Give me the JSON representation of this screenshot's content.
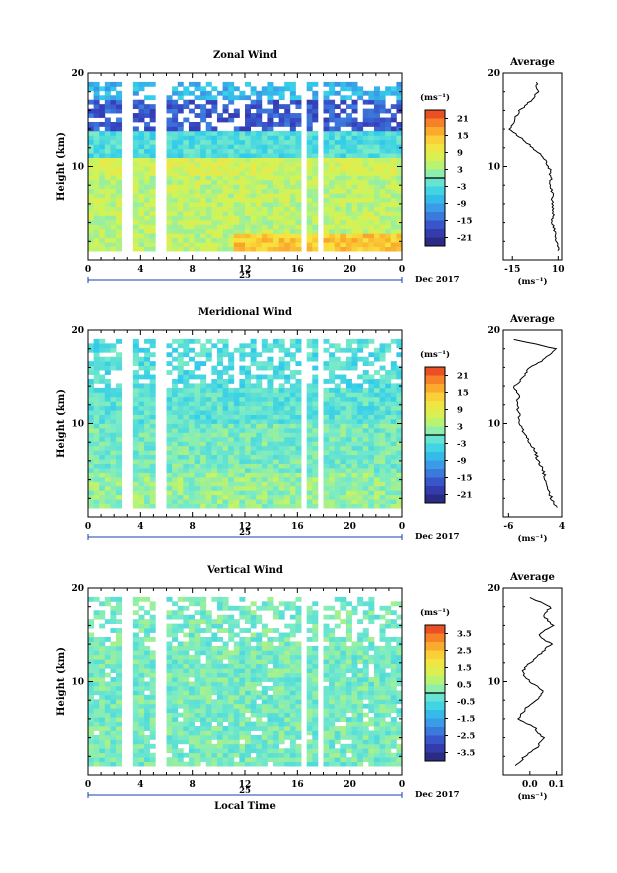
{
  "chart_data": [
    {
      "type": "heatmap",
      "title": "Zonal Wind",
      "ylabel": "Height (km)",
      "xlabel": "",
      "xlim": [
        0,
        24
      ],
      "ylim": [
        0,
        20
      ],
      "x_ticks": [
        "0",
        "4",
        "8",
        "12",
        "16",
        "20",
        "0"
      ],
      "y_ticks": [
        "10",
        "20"
      ],
      "day_label": "25",
      "date_label": "Dec 2017",
      "colorbar": {
        "unit": "(ms⁻¹)",
        "min": -24,
        "max": 24,
        "ticks": [
          "21",
          "15",
          "9",
          "3",
          "-3",
          "-9",
          "-15",
          "-21"
        ]
      },
      "data_gaps_hours": [
        [
          2.4,
          3.5
        ],
        [
          5.3,
          5.9
        ],
        [
          16.1,
          16.5
        ],
        [
          17.5,
          17.8
        ]
      ],
      "layers": [
        {
          "z_range": [
            1,
            3
          ],
          "value_early": 5,
          "value_late": 14
        },
        {
          "z_range": [
            3,
            9
          ],
          "value": 5
        },
        {
          "z_range": [
            9,
            11
          ],
          "value": 7
        },
        {
          "z_range": [
            11,
            14
          ],
          "value": -3
        },
        {
          "z_range": [
            14,
            17
          ],
          "value": -16
        },
        {
          "z_range": [
            17,
            19
          ],
          "value": -8
        }
      ],
      "profile": {
        "title": "Average",
        "xlabel": "(ms⁻¹)",
        "xlim": [
          -20,
          12
        ],
        "x_ticks": [
          "-15",
          "10"
        ],
        "y_ticks": [
          "10",
          "20"
        ],
        "height_km": [
          1,
          2,
          3,
          4,
          5,
          6,
          7,
          8,
          9,
          10,
          11,
          12,
          13,
          14,
          15,
          16,
          17,
          18,
          19
        ],
        "values": [
          10,
          9,
          8,
          7,
          7,
          7,
          7,
          6,
          6,
          5,
          2,
          -4,
          -10,
          -16,
          -14,
          -11,
          -5,
          -1,
          -2
        ]
      }
    },
    {
      "type": "heatmap",
      "title": "Meridional Wind",
      "ylabel": "Height (km)",
      "xlabel": "",
      "xlim": [
        0,
        24
      ],
      "ylim": [
        0,
        20
      ],
      "x_ticks": [
        "0",
        "4",
        "8",
        "12",
        "16",
        "20",
        "0"
      ],
      "y_ticks": [
        "10",
        "20"
      ],
      "day_label": "25",
      "date_label": "Dec 2017",
      "colorbar": {
        "unit": "(ms⁻¹)",
        "min": -24,
        "max": 24,
        "ticks": [
          "21",
          "15",
          "9",
          "3",
          "-3",
          "-9",
          "-15",
          "-21"
        ]
      },
      "data_gaps_hours": [
        [
          2.4,
          3.5
        ],
        [
          5.3,
          5.9
        ],
        [
          16.1,
          16.5
        ],
        [
          17.5,
          17.8
        ]
      ],
      "layers": [
        {
          "z_range": [
            1,
            5
          ],
          "value": 2
        },
        {
          "z_range": [
            5,
            10
          ],
          "value": 0
        },
        {
          "z_range": [
            10,
            14
          ],
          "value": -2
        },
        {
          "z_range": [
            14,
            19
          ],
          "value": -3
        }
      ],
      "profile": {
        "title": "Average",
        "xlabel": "(ms⁻¹)",
        "xlim": [
          -7,
          4
        ],
        "x_ticks": [
          "-6",
          "4"
        ],
        "y_ticks": [
          "10",
          "20"
        ],
        "height_km": [
          1,
          2,
          3,
          4,
          5,
          6,
          7,
          8,
          9,
          10,
          11,
          12,
          13,
          14,
          15,
          16,
          17,
          18,
          19
        ],
        "values": [
          3,
          2,
          1.5,
          1,
          0.5,
          -0.5,
          -1,
          -2,
          -3,
          -4,
          -4,
          -4.5,
          -4,
          -5,
          -3,
          -2,
          1,
          3,
          -5
        ]
      }
    },
    {
      "type": "heatmap",
      "title": "Vertical Wind",
      "ylabel": "Height (km)",
      "xlabel": "Local Time",
      "xlim": [
        0,
        24
      ],
      "ylim": [
        0,
        20
      ],
      "x_ticks": [
        "0",
        "4",
        "8",
        "12",
        "16",
        "20",
        "0"
      ],
      "y_ticks": [
        "10",
        "20"
      ],
      "day_label": "25",
      "date_label": "Dec 2017",
      "colorbar": {
        "unit": "(ms⁻¹)",
        "min": -4,
        "max": 4,
        "ticks": [
          "3.5",
          "2.5",
          "1.5",
          "0.5",
          "-0.5",
          "-1.5",
          "-2.5",
          "-3.5"
        ]
      },
      "data_gaps_hours": [
        [
          2.4,
          3.5
        ],
        [
          5.3,
          5.9
        ],
        [
          16.1,
          16.5
        ],
        [
          17.5,
          17.8
        ]
      ],
      "layers": [
        {
          "z_range": [
            1,
            19
          ],
          "value": 0
        }
      ],
      "profile": {
        "title": "Average",
        "xlabel": "(ms⁻¹)",
        "xlim": [
          -0.1,
          0.12
        ],
        "x_ticks": [
          "0.0",
          "0.1"
        ],
        "y_ticks": [
          "10",
          "20"
        ],
        "height_km": [
          1,
          2,
          3,
          4,
          5,
          6,
          7,
          8,
          9,
          10,
          11,
          12,
          13,
          14,
          15,
          16,
          17,
          18,
          19
        ],
        "values": [
          -0.05,
          -0.02,
          0.03,
          0.05,
          0.02,
          -0.04,
          -0.02,
          0.03,
          0.05,
          0.0,
          -0.03,
          0.0,
          0.04,
          0.08,
          0.03,
          0.09,
          0.05,
          0.08,
          0.0
        ]
      }
    }
  ]
}
